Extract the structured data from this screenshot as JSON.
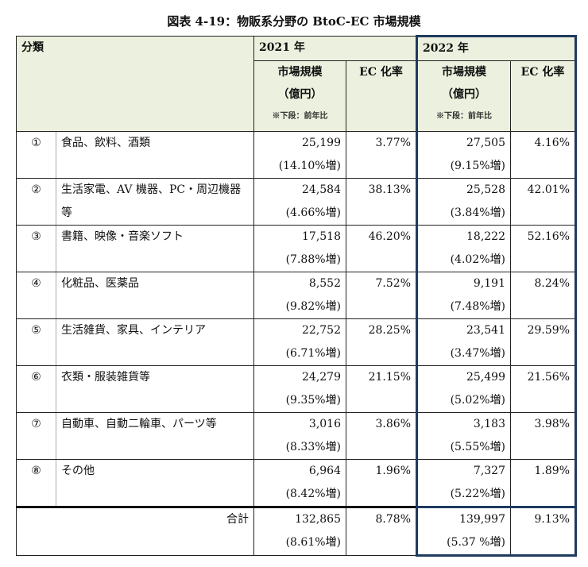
{
  "title": "図表 4-19：物販系分野の BtoC-EC 市場規模",
  "header": {
    "category": "分類",
    "year1": "2021 年",
    "year2": "2022 年",
    "market": "市場規模",
    "unit": "（億円）",
    "note": "※下段：前年比",
    "ec_rate": "EC 化率"
  },
  "rows": [
    {
      "num": "①",
      "name": "食品、飲料、酒類",
      "m2021": "25,199",
      "g2021": "(14.10%増)",
      "ec2021": "3.77%",
      "m2022": "27,505",
      "g2022": "(9.15%増)",
      "ec2022": "4.16%"
    },
    {
      "num": "②",
      "name": "生活家電、AV 機器、PC・周辺機器等",
      "m2021": "24,584",
      "g2021": "(4.66%増)",
      "ec2021": "38.13%",
      "m2022": "25,528",
      "g2022": "(3.84%増)",
      "ec2022": "42.01%"
    },
    {
      "num": "③",
      "name": "書籍、映像・音楽ソフト",
      "m2021": "17,518",
      "g2021": "(7.88%増)",
      "ec2021": "46.20%",
      "m2022": "18,222",
      "g2022": "(4.02%増)",
      "ec2022": "52.16%"
    },
    {
      "num": "④",
      "name": "化粧品、医薬品",
      "m2021": "8,552",
      "g2021": "(9.82%増)",
      "ec2021": "7.52%",
      "m2022": "9,191",
      "g2022": "(7.48%増)",
      "ec2022": "8.24%"
    },
    {
      "num": "⑤",
      "name": "生活雑貨、家具、インテリア",
      "m2021": "22,752",
      "g2021": "(6.71%増)",
      "ec2021": "28.25%",
      "m2022": "23,541",
      "g2022": "(3.47%増)",
      "ec2022": "29.59%"
    },
    {
      "num": "⑥",
      "name": "衣類・服装雑貨等",
      "m2021": "24,279",
      "g2021": "(9.35%増)",
      "ec2021": "21.15%",
      "m2022": "25,499",
      "g2022": "(5.02%増)",
      "ec2022": "21.56%"
    },
    {
      "num": "⑦",
      "name": "自動車、自動二輪車、パーツ等",
      "m2021": "3,016",
      "g2021": "(8.33%増)",
      "ec2021": "3.86%",
      "m2022": "3,183",
      "g2022": "(5.55%増)",
      "ec2022": "3.98%"
    },
    {
      "num": "⑧",
      "name": "その他",
      "m2021": "6,964",
      "g2021": "(8.42%増)",
      "ec2021": "1.96%",
      "m2022": "7,327",
      "g2022": "(5.22%増)",
      "ec2022": "1.89%"
    }
  ],
  "total": {
    "label": "合計",
    "m2021": "132,865",
    "g2021": "(8.61%増)",
    "ec2021": "8.78%",
    "m2022": "139,997",
    "g2022": "(5.37 %増)",
    "ec2022": "9.13%"
  },
  "colors": {
    "header_bg": "#ebf1de",
    "highlight_border": "#1f3a5f"
  }
}
